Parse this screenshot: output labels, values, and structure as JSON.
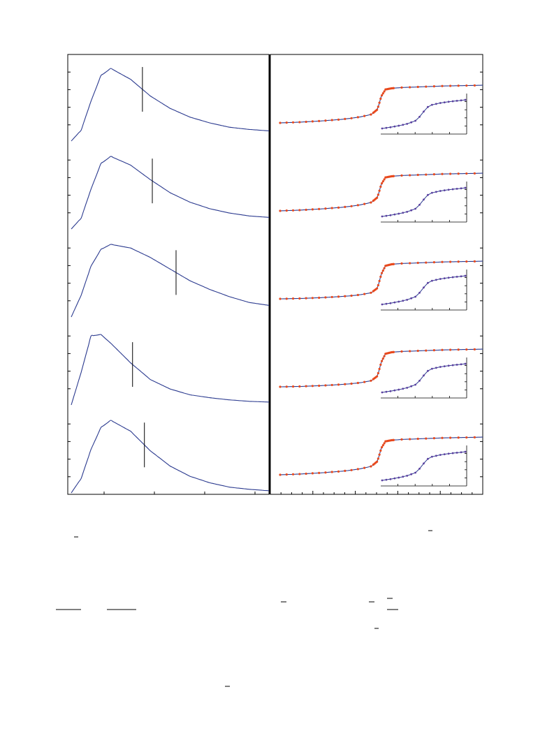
{
  "chart_data": [
    {
      "type": "line",
      "panel": "left",
      "stacked_subplots": 5,
      "series_color": "#2b3a8f",
      "marker_line_color": "#000000",
      "series": [
        {
          "x": [
            0,
            0.05,
            0.1,
            0.15,
            0.2,
            0.3,
            0.4,
            0.5,
            0.6,
            0.7,
            0.8,
            0.9,
            1.0
          ],
          "y": [
            0,
            0.15,
            0.55,
            0.9,
            1.0,
            0.85,
            0.62,
            0.45,
            0.33,
            0.25,
            0.19,
            0.16,
            0.14
          ],
          "marker_x": 0.36
        },
        {
          "x": [
            0,
            0.05,
            0.1,
            0.15,
            0.2,
            0.3,
            0.4,
            0.5,
            0.6,
            0.7,
            0.8,
            0.9,
            1.0
          ],
          "y": [
            0,
            0.15,
            0.55,
            0.9,
            1.0,
            0.88,
            0.68,
            0.5,
            0.37,
            0.28,
            0.22,
            0.18,
            0.16
          ],
          "marker_x": 0.41
        },
        {
          "x": [
            0,
            0.05,
            0.1,
            0.15,
            0.2,
            0.3,
            0.4,
            0.5,
            0.6,
            0.7,
            0.8,
            0.9,
            1.0
          ],
          "y": [
            0,
            0.3,
            0.7,
            0.93,
            1.0,
            0.95,
            0.82,
            0.66,
            0.5,
            0.38,
            0.28,
            0.2,
            0.16
          ],
          "marker_x": 0.53
        },
        {
          "x": [
            0,
            0.05,
            0.1,
            0.15,
            0.2,
            0.3,
            0.4,
            0.5,
            0.6,
            0.7,
            0.8,
            0.9,
            1.0
          ],
          "y": [
            0,
            0.45,
            0.95,
            0.97,
            0.85,
            0.58,
            0.35,
            0.22,
            0.14,
            0.1,
            0.07,
            0.05,
            0.04
          ],
          "marker_x": 0.31
        },
        {
          "x": [
            0,
            0.05,
            0.1,
            0.15,
            0.2,
            0.3,
            0.4,
            0.5,
            0.6,
            0.7,
            0.8,
            0.9,
            1.0
          ],
          "y": [
            0,
            0.2,
            0.6,
            0.9,
            1.0,
            0.85,
            0.58,
            0.37,
            0.23,
            0.14,
            0.08,
            0.05,
            0.03
          ],
          "marker_x": 0.37
        }
      ]
    },
    {
      "type": "line",
      "panel": "right",
      "stacked_subplots": 5,
      "series_color": "#2b3a8f",
      "marker_color": "#e8491d",
      "inset_marker_color": "#5b3fa0",
      "series": [
        {
          "x": [
            0,
            0.1,
            0.2,
            0.3,
            0.35,
            0.4,
            0.45,
            0.48,
            0.5,
            0.52,
            0.55,
            0.6,
            0.7,
            0.8,
            0.9,
            1.0
          ],
          "y": [
            0,
            0.02,
            0.05,
            0.09,
            0.12,
            0.16,
            0.22,
            0.35,
            0.7,
            0.87,
            0.9,
            0.92,
            0.94,
            0.96,
            0.97,
            0.98
          ]
        },
        {
          "x": [
            0,
            0.1,
            0.2,
            0.3,
            0.35,
            0.4,
            0.45,
            0.48,
            0.5,
            0.52,
            0.55,
            0.6,
            0.7,
            0.8,
            0.9,
            1.0
          ],
          "y": [
            0,
            0.02,
            0.05,
            0.09,
            0.12,
            0.16,
            0.22,
            0.35,
            0.7,
            0.87,
            0.9,
            0.92,
            0.94,
            0.96,
            0.97,
            0.98
          ]
        },
        {
          "x": [
            0,
            0.1,
            0.2,
            0.3,
            0.35,
            0.4,
            0.45,
            0.48,
            0.5,
            0.52,
            0.55,
            0.6,
            0.7,
            0.8,
            0.9,
            1.0
          ],
          "y": [
            0,
            0.01,
            0.03,
            0.06,
            0.08,
            0.11,
            0.16,
            0.28,
            0.65,
            0.86,
            0.9,
            0.92,
            0.94,
            0.96,
            0.97,
            0.98
          ]
        },
        {
          "x": [
            0,
            0.1,
            0.2,
            0.3,
            0.35,
            0.4,
            0.45,
            0.48,
            0.5,
            0.52,
            0.55,
            0.6,
            0.7,
            0.8,
            0.9,
            1.0
          ],
          "y": [
            0,
            0.01,
            0.03,
            0.06,
            0.08,
            0.11,
            0.16,
            0.28,
            0.65,
            0.86,
            0.9,
            0.92,
            0.94,
            0.96,
            0.97,
            0.98
          ]
        },
        {
          "x": [
            0,
            0.1,
            0.2,
            0.3,
            0.35,
            0.4,
            0.45,
            0.48,
            0.5,
            0.52,
            0.55,
            0.6,
            0.7,
            0.8,
            0.9,
            1.0
          ],
          "y": [
            0,
            0.02,
            0.05,
            0.09,
            0.12,
            0.16,
            0.22,
            0.35,
            0.7,
            0.87,
            0.9,
            0.92,
            0.94,
            0.96,
            0.97,
            0.98
          ]
        }
      ],
      "inset": {
        "x": [
          0,
          0.1,
          0.2,
          0.3,
          0.4,
          0.45,
          0.5,
          0.55,
          0.6,
          0.7,
          0.8,
          0.9,
          1.0
        ],
        "y": [
          0,
          0.04,
          0.09,
          0.15,
          0.25,
          0.38,
          0.55,
          0.7,
          0.77,
          0.83,
          0.87,
          0.9,
          0.93
        ]
      }
    }
  ]
}
